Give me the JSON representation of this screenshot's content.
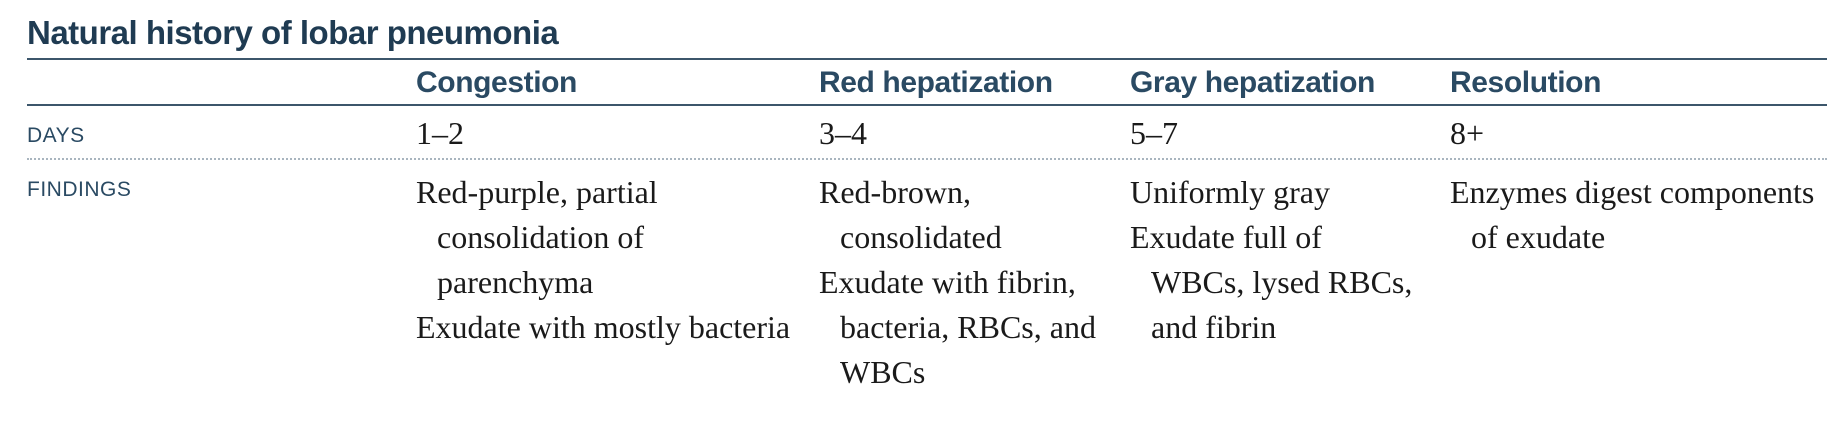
{
  "title": "Natural history of lobar pneumonia",
  "columns": [
    {
      "heading": "Congestion"
    },
    {
      "heading": "Red hepatization"
    },
    {
      "heading": "Gray hepatization"
    },
    {
      "heading": "Resolution"
    }
  ],
  "rows": {
    "days": {
      "label": "DAYS",
      "values": [
        "1–2",
        "3–4",
        "5–7",
        "8+"
      ]
    },
    "findings": {
      "label": "FINDINGS",
      "cells": [
        [
          "Red-purple, partial consolidation of parenchyma",
          "Exudate with mostly bacteria"
        ],
        [
          "Red-brown, consolidated",
          "Exudate with fibrin, bacteria, RBCs, and WBCs"
        ],
        [
          "Uniformly gray",
          "Exudate full of WBCs, lysed RBCs, and fibrin"
        ],
        [
          "Enzymes digest components of exudate"
        ]
      ]
    }
  }
}
